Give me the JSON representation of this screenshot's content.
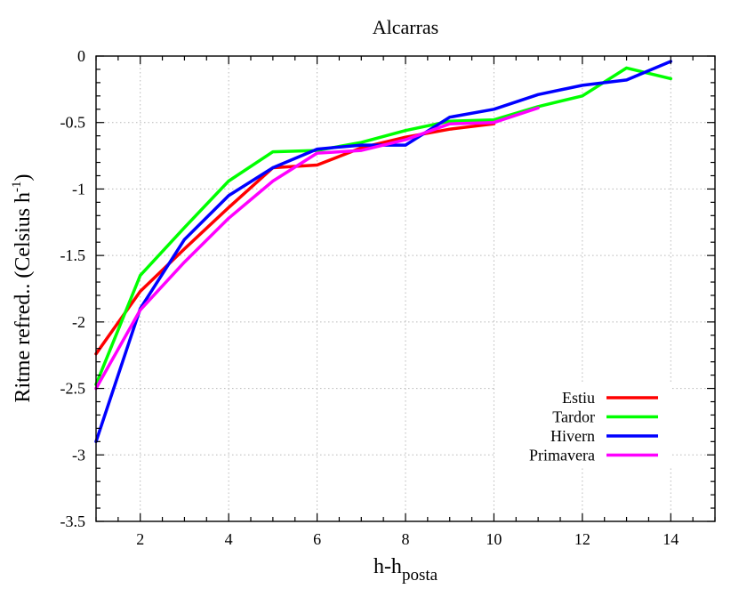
{
  "chart_data": {
    "type": "line",
    "title": "Alcarras",
    "xlabel": "h-h",
    "xlabel_subscript": "posta",
    "ylabel": "Ritme refred.. (Celsius h",
    "ylabel_superscript": "-1",
    "ylabel_suffix": ")",
    "xlim": [
      1,
      15
    ],
    "ylim": [
      -3.5,
      0
    ],
    "x_ticks": [
      2,
      4,
      6,
      8,
      10,
      12,
      14
    ],
    "x_tick_labels": [
      "2",
      "4",
      "6",
      "8",
      "10",
      "12",
      "14"
    ],
    "y_ticks": [
      0,
      -0.5,
      -1,
      -1.5,
      -2,
      -2.5,
      -3,
      -3.5
    ],
    "y_tick_labels": [
      "0",
      "-0.5",
      "-1",
      "-1.5",
      "-2",
      "-2.5",
      "-3",
      "-3.5"
    ],
    "grid": true,
    "legend_position": "bottom-right",
    "series": [
      {
        "name": "Estiu",
        "color": "#ff0000",
        "x": [
          1,
          2,
          3,
          4,
          5,
          6,
          7,
          8,
          9,
          10
        ],
        "y": [
          -2.24,
          -1.77,
          -1.45,
          -1.14,
          -0.84,
          -0.82,
          -0.69,
          -0.61,
          -0.55,
          -0.51
        ]
      },
      {
        "name": "Tardor",
        "color": "#00ff00",
        "x": [
          1,
          2,
          3,
          4,
          5,
          6,
          7,
          8,
          9,
          10,
          11,
          12,
          13,
          14
        ],
        "y": [
          -2.47,
          -1.65,
          -1.29,
          -0.94,
          -0.72,
          -0.71,
          -0.65,
          -0.56,
          -0.49,
          -0.48,
          -0.38,
          -0.3,
          -0.09,
          -0.17
        ]
      },
      {
        "name": "Hivern",
        "color": "#0000ff",
        "x": [
          1,
          2,
          3,
          4,
          5,
          6,
          7,
          8,
          9,
          10,
          11,
          12,
          13,
          14
        ],
        "y": [
          -2.9,
          -1.9,
          -1.38,
          -1.05,
          -0.84,
          -0.7,
          -0.67,
          -0.67,
          -0.46,
          -0.4,
          -0.29,
          -0.22,
          -0.18,
          -0.04
        ]
      },
      {
        "name": "Primavera",
        "color": "#ff00ff",
        "x": [
          1,
          2,
          3,
          4,
          5,
          6,
          7,
          8,
          9,
          10,
          11
        ],
        "y": [
          -2.5,
          -1.91,
          -1.55,
          -1.22,
          -0.94,
          -0.73,
          -0.71,
          -0.63,
          -0.51,
          -0.5,
          -0.39
        ]
      }
    ]
  }
}
